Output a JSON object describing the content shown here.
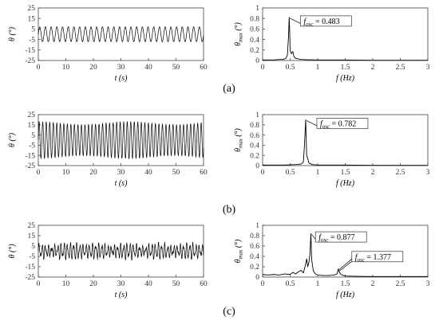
{
  "panel_labels": [
    "(a)",
    "(b)",
    "(c)"
  ],
  "chart_data": [
    {
      "type": "line",
      "panel": "(a)",
      "position": "left",
      "title": "",
      "xlabel": "t (s)",
      "ylabel": "θ (°)",
      "xlim": [
        0,
        60
      ],
      "ylim": [
        -25,
        25
      ],
      "xticks": [
        0,
        10,
        20,
        30,
        40,
        50,
        60
      ],
      "yticks": [
        -25,
        -15,
        -5,
        5,
        15,
        25
      ],
      "signal": {
        "kind": "sinusoid",
        "amplitude": 7,
        "frequency_hz": 0.483,
        "modulation": 0,
        "noise": 0.5
      },
      "series": [
        {
          "name": "",
          "color": "#000000"
        }
      ]
    },
    {
      "type": "line",
      "panel": "(a)",
      "position": "right",
      "title": "",
      "xlabel": "f (Hz)",
      "ylabel": "θ_max (°)",
      "xlim": [
        0,
        3
      ],
      "ylim": [
        0,
        1
      ],
      "xticks": [
        0,
        0.5,
        1,
        1.5,
        2,
        2.5,
        3
      ],
      "yticks": [
        0,
        0.2,
        0.4,
        0.6,
        0.8,
        1
      ],
      "series": [
        {
          "name": "",
          "color": "#000000",
          "points": [
            [
              0,
              0.01
            ],
            [
              0.1,
              0.01
            ],
            [
              0.2,
              0.01
            ],
            [
              0.3,
              0.02
            ],
            [
              0.38,
              0.02
            ],
            [
              0.42,
              0.04
            ],
            [
              0.45,
              0.1
            ],
            [
              0.47,
              0.45
            ],
            [
              0.483,
              0.82
            ],
            [
              0.49,
              0.62
            ],
            [
              0.5,
              0.2
            ],
            [
              0.52,
              0.13
            ],
            [
              0.55,
              0.17
            ],
            [
              0.57,
              0.07
            ],
            [
              0.6,
              0.04
            ],
            [
              0.7,
              0.02
            ],
            [
              0.8,
              0.015
            ],
            [
              1.0,
              0.01
            ],
            [
              1.5,
              0.01
            ],
            [
              2.0,
              0.005
            ],
            [
              2.5,
              0.005
            ],
            [
              3.0,
              0.005
            ]
          ]
        }
      ],
      "annotations": [
        {
          "label": "f",
          "subscript": "osc",
          "text": " = 0.483",
          "x": 0.483,
          "y": 0.82
        }
      ]
    },
    {
      "type": "line",
      "panel": "(b)",
      "position": "left",
      "title": "",
      "xlabel": "t (s)",
      "ylabel": "θ (°)",
      "xlim": [
        0,
        60
      ],
      "ylim": [
        -25,
        25
      ],
      "xticks": [
        0,
        10,
        20,
        30,
        40,
        50,
        60
      ],
      "yticks": [
        -25,
        -15,
        -5,
        5,
        15,
        25
      ],
      "signal": {
        "kind": "sinusoid",
        "amplitude": 18,
        "frequency_hz": 0.782,
        "modulation": 0.08,
        "noise": 0.8
      },
      "series": [
        {
          "name": "",
          "color": "#000000"
        }
      ]
    },
    {
      "type": "line",
      "panel": "(b)",
      "position": "right",
      "title": "",
      "xlabel": "f (Hz)",
      "ylabel": "θ_max (°)",
      "xlim": [
        0,
        3
      ],
      "ylim": [
        0,
        1
      ],
      "xticks": [
        0,
        0.5,
        1,
        1.5,
        2,
        2.5,
        3
      ],
      "yticks": [
        0,
        0.2,
        0.4,
        0.6,
        0.8,
        1
      ],
      "series": [
        {
          "name": "",
          "color": "#000000",
          "points": [
            [
              0,
              0.01
            ],
            [
              0.2,
              0.01
            ],
            [
              0.4,
              0.01
            ],
            [
              0.6,
              0.02
            ],
            [
              0.7,
              0.03
            ],
            [
              0.74,
              0.07
            ],
            [
              0.76,
              0.4
            ],
            [
              0.782,
              0.9
            ],
            [
              0.79,
              0.6
            ],
            [
              0.8,
              0.2
            ],
            [
              0.82,
              0.14
            ],
            [
              0.84,
              0.05
            ],
            [
              0.9,
              0.02
            ],
            [
              1.0,
              0.01
            ],
            [
              1.5,
              0.01
            ],
            [
              2.0,
              0.005
            ],
            [
              2.5,
              0.005
            ],
            [
              3.0,
              0.005
            ]
          ]
        }
      ],
      "annotations": [
        {
          "label": "f",
          "subscript": "osc",
          "text": " = 0.782",
          "x": 0.782,
          "y": 0.9
        }
      ]
    },
    {
      "type": "line",
      "panel": "(c)",
      "position": "left",
      "title": "",
      "xlabel": "t (s)",
      "ylabel": "θ (°)",
      "xlim": [
        0,
        60
      ],
      "ylim": [
        -25,
        25
      ],
      "xticks": [
        0,
        10,
        20,
        30,
        40,
        50,
        60
      ],
      "yticks": [
        -25,
        -15,
        -5,
        5,
        15,
        25
      ],
      "signal": {
        "kind": "irregular",
        "amplitude": 6,
        "frequency_hz": 0.877,
        "modulation": 0.5,
        "noise": 2.5
      },
      "series": [
        {
          "name": "",
          "color": "#000000"
        }
      ]
    },
    {
      "type": "line",
      "panel": "(c)",
      "position": "right",
      "title": "",
      "xlabel": "f (Hz)",
      "ylabel": "θ_max (°)",
      "xlim": [
        0,
        3
      ],
      "ylim": [
        0,
        1
      ],
      "xticks": [
        0,
        0.5,
        1,
        1.5,
        2,
        2.5,
        3
      ],
      "yticks": [
        0,
        0.2,
        0.4,
        0.6,
        0.8,
        1
      ],
      "series": [
        {
          "name": "",
          "color": "#000000",
          "points": [
            [
              0,
              0.05
            ],
            [
              0.1,
              0.04
            ],
            [
              0.2,
              0.05
            ],
            [
              0.3,
              0.04
            ],
            [
              0.4,
              0.06
            ],
            [
              0.5,
              0.05
            ],
            [
              0.55,
              0.09
            ],
            [
              0.6,
              0.06
            ],
            [
              0.65,
              0.1
            ],
            [
              0.7,
              0.13
            ],
            [
              0.74,
              0.08
            ],
            [
              0.78,
              0.24
            ],
            [
              0.8,
              0.35
            ],
            [
              0.82,
              0.2
            ],
            [
              0.84,
              0.28
            ],
            [
              0.86,
              0.45
            ],
            [
              0.877,
              0.84
            ],
            [
              0.89,
              0.35
            ],
            [
              0.92,
              0.12
            ],
            [
              0.96,
              0.06
            ],
            [
              1.0,
              0.04
            ],
            [
              1.1,
              0.03
            ],
            [
              1.2,
              0.03
            ],
            [
              1.3,
              0.04
            ],
            [
              1.35,
              0.06
            ],
            [
              1.377,
              0.16
            ],
            [
              1.39,
              0.1
            ],
            [
              1.42,
              0.05
            ],
            [
              1.5,
              0.02
            ],
            [
              1.7,
              0.015
            ],
            [
              2.0,
              0.01
            ],
            [
              2.5,
              0.01
            ],
            [
              3.0,
              0.01
            ]
          ]
        }
      ],
      "annotations": [
        {
          "label": "f",
          "subscript": "osc",
          "text": " = 0.877",
          "x": 0.877,
          "y": 0.84
        },
        {
          "label": "f",
          "subscript": "osc",
          "text": " = 1.377",
          "x": 1.377,
          "y": 0.16
        }
      ]
    }
  ]
}
